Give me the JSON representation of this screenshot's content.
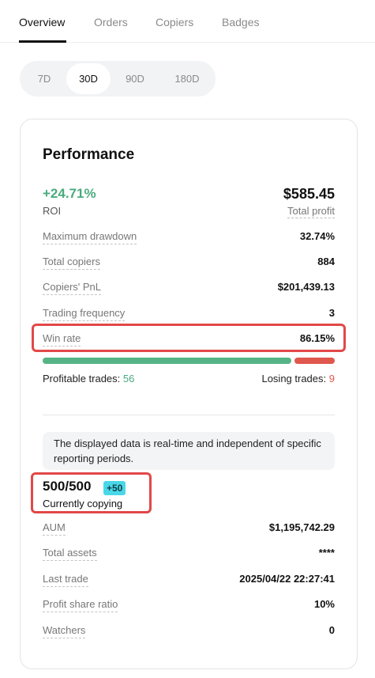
{
  "tabs": [
    {
      "label": "Overview",
      "active": true
    },
    {
      "label": "Orders",
      "active": false
    },
    {
      "label": "Copiers",
      "active": false
    },
    {
      "label": "Badges",
      "active": false
    }
  ],
  "periods": [
    {
      "label": "7D",
      "active": false
    },
    {
      "label": "30D",
      "active": true
    },
    {
      "label": "90D",
      "active": false
    },
    {
      "label": "180D",
      "active": false
    }
  ],
  "performance": {
    "title": "Performance",
    "roi_value": "+24.71%",
    "roi_label": "ROI",
    "profit_value": "$585.45",
    "profit_label": "Total profit",
    "rows": [
      {
        "label": "Maximum drawdown",
        "value": "32.74%"
      },
      {
        "label": "Total copiers",
        "value": "884"
      },
      {
        "label": "Copiers' PnL",
        "value": "$201,439.13"
      },
      {
        "label": "Trading frequency",
        "value": "3"
      },
      {
        "label": "Win rate",
        "value": "86.15%"
      }
    ],
    "win_fraction": 0.8615,
    "profitable_label": "Profitable trades:",
    "profitable_count": "56",
    "losing_label": "Losing trades:",
    "losing_count": "9"
  },
  "notice": "The displayed data is real-time and independent of specific reporting periods.",
  "copying": {
    "count": "500/500",
    "badge": "+50",
    "label": "Currently copying"
  },
  "details": [
    {
      "label": "AUM",
      "value": "$1,195,742.29"
    },
    {
      "label": "Total assets",
      "value": "****"
    },
    {
      "label": "Last trade",
      "value": "2025/04/22 22:27:41"
    },
    {
      "label": "Profit share ratio",
      "value": "10%"
    },
    {
      "label": "Watchers",
      "value": "0"
    }
  ],
  "colors": {
    "positive": "#4aab7f",
    "negative": "#e0574d",
    "highlight": "#e24848",
    "badge": "#4ad7e8"
  }
}
